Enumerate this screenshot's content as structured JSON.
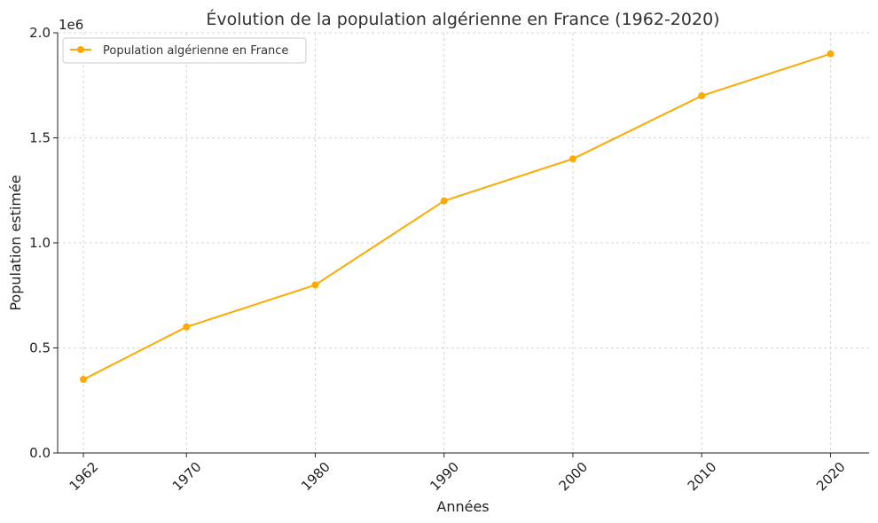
{
  "chart_data": {
    "type": "line",
    "title": "Évolution de la population algérienne en France (1962-2020)",
    "xlabel": "Années",
    "ylabel": "Population estimée",
    "y_offset_label": "1e6",
    "x": [
      1962,
      1970,
      1980,
      1990,
      2000,
      2010,
      2020
    ],
    "x_tick_labels": [
      "1962",
      "1970",
      "1980",
      "1990",
      "2000",
      "2010",
      "2020"
    ],
    "y_ticks": [
      0,
      500000,
      1000000,
      1500000,
      2000000
    ],
    "y_tick_labels": [
      "0.0",
      "0.5",
      "1.0",
      "1.5",
      "2.0"
    ],
    "ylim": [
      0,
      2000000
    ],
    "xlim": [
      1960,
      2023
    ],
    "grid": true,
    "legend_position": "top-left",
    "series": [
      {
        "name": "Population algérienne en France",
        "color": "#FFAA00",
        "values": [
          350000,
          600000,
          800000,
          1200000,
          1400000,
          1700000,
          1900000
        ]
      }
    ]
  }
}
